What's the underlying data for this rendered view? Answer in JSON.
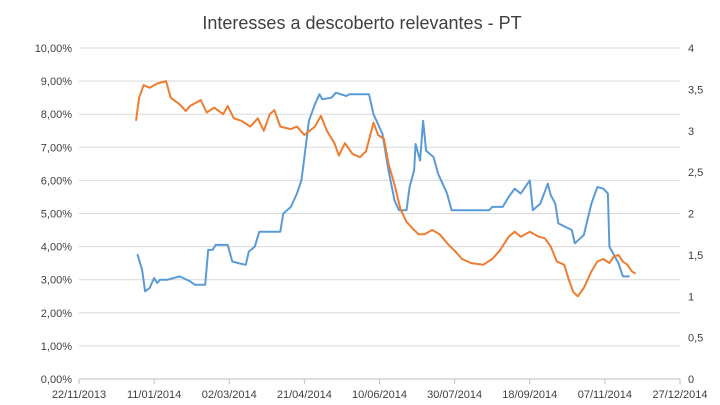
{
  "chart_data": {
    "type": "line",
    "title": "Interesses a descoberto relevantes - PT",
    "xlabel": "",
    "ylabel": "",
    "x_tick_labels": [
      "22/11/2013",
      "11/01/2014",
      "02/03/2014",
      "21/04/2014",
      "10/06/2014",
      "30/07/2014",
      "18/09/2014",
      "07/11/2014",
      "27/12/2014"
    ],
    "y_left_tick_labels": [
      "0,00%",
      "1,00%",
      "2,00%",
      "3,00%",
      "4,00%",
      "5,00%",
      "6,00%",
      "7,00%",
      "8,00%",
      "9,00%",
      "10,00%"
    ],
    "y_right_tick_labels": [
      "0",
      "0,5",
      "1",
      "1,5",
      "2",
      "2,5",
      "3",
      "3,5",
      "4"
    ],
    "xlim": [
      "2013-11-22",
      "2014-12-27"
    ],
    "ylim_left": [
      0,
      10
    ],
    "ylim_right": [
      0,
      4
    ],
    "grid": true,
    "legend": "none",
    "series": [
      {
        "axis": "left",
        "color": "#5B9BD5",
        "points": [
          [
            "2013-12-31",
            3.75
          ],
          [
            "2014-01-03",
            3.3
          ],
          [
            "2014-01-05",
            2.65
          ],
          [
            "2014-01-08",
            2.75
          ],
          [
            "2014-01-11",
            3.05
          ],
          [
            "2014-01-13",
            2.9
          ],
          [
            "2014-01-15",
            3.0
          ],
          [
            "2014-01-20",
            3.0
          ],
          [
            "2014-01-28",
            3.1
          ],
          [
            "2014-02-04",
            2.95
          ],
          [
            "2014-02-07",
            2.85
          ],
          [
            "2014-02-14",
            2.85
          ],
          [
            "2014-02-16",
            3.9
          ],
          [
            "2014-02-19",
            3.9
          ],
          [
            "2014-02-21",
            4.05
          ],
          [
            "2014-03-01",
            4.05
          ],
          [
            "2014-03-04",
            3.55
          ],
          [
            "2014-03-08",
            3.5
          ],
          [
            "2014-03-13",
            3.45
          ],
          [
            "2014-03-15",
            3.85
          ],
          [
            "2014-03-19",
            4.0
          ],
          [
            "2014-03-22",
            4.45
          ],
          [
            "2014-04-05",
            4.45
          ],
          [
            "2014-04-07",
            5.0
          ],
          [
            "2014-04-12",
            5.2
          ],
          [
            "2014-04-16",
            5.6
          ],
          [
            "2014-04-19",
            6.0
          ],
          [
            "2014-04-21",
            6.7
          ],
          [
            "2014-04-24",
            7.8
          ],
          [
            "2014-04-28",
            8.3
          ],
          [
            "2014-05-01",
            8.6
          ],
          [
            "2014-05-03",
            8.45
          ],
          [
            "2014-05-09",
            8.5
          ],
          [
            "2014-05-12",
            8.65
          ],
          [
            "2014-05-19",
            8.55
          ],
          [
            "2014-05-21",
            8.6
          ],
          [
            "2014-06-03",
            8.6
          ],
          [
            "2014-06-06",
            8.0
          ],
          [
            "2014-06-12",
            7.4
          ],
          [
            "2014-06-16",
            6.3
          ],
          [
            "2014-06-20",
            5.4
          ],
          [
            "2014-06-23",
            5.1
          ],
          [
            "2014-06-28",
            5.1
          ],
          [
            "2014-06-30",
            5.8
          ],
          [
            "2014-07-03",
            6.3
          ],
          [
            "2014-07-04",
            7.1
          ],
          [
            "2014-07-07",
            6.6
          ],
          [
            "2014-07-09",
            7.8
          ],
          [
            "2014-07-11",
            6.9
          ],
          [
            "2014-07-16",
            6.7
          ],
          [
            "2014-07-19",
            6.2
          ],
          [
            "2014-07-25",
            5.6
          ],
          [
            "2014-07-28",
            5.1
          ],
          [
            "2014-08-22",
            5.1
          ],
          [
            "2014-08-24",
            5.2
          ],
          [
            "2014-08-31",
            5.2
          ],
          [
            "2014-09-04",
            5.5
          ],
          [
            "2014-09-08",
            5.75
          ],
          [
            "2014-09-12",
            5.6
          ],
          [
            "2014-09-18",
            6.0
          ],
          [
            "2014-09-20",
            5.1
          ],
          [
            "2014-09-25",
            5.3
          ],
          [
            "2014-09-30",
            5.9
          ],
          [
            "2014-10-02",
            5.55
          ],
          [
            "2014-10-05",
            5.3
          ],
          [
            "2014-10-07",
            4.7
          ],
          [
            "2014-10-16",
            4.5
          ],
          [
            "2014-10-18",
            4.1
          ],
          [
            "2014-10-24",
            4.35
          ],
          [
            "2014-10-29",
            5.3
          ],
          [
            "2014-11-02",
            5.8
          ],
          [
            "2014-11-06",
            5.75
          ],
          [
            "2014-11-09",
            5.6
          ],
          [
            "2014-11-10",
            4.0
          ],
          [
            "2014-11-16",
            3.5
          ],
          [
            "2014-11-19",
            3.1
          ],
          [
            "2014-11-23",
            3.1
          ]
        ]
      },
      {
        "axis": "right",
        "color": "#ED7D31",
        "points": [
          [
            "2013-12-30",
            3.13
          ],
          [
            "2014-01-01",
            3.4
          ],
          [
            "2014-01-04",
            3.55
          ],
          [
            "2014-01-08",
            3.52
          ],
          [
            "2014-01-13",
            3.57
          ],
          [
            "2014-01-19",
            3.6
          ],
          [
            "2014-01-22",
            3.4
          ],
          [
            "2014-01-28",
            3.32
          ],
          [
            "2014-02-01",
            3.24
          ],
          [
            "2014-02-04",
            3.3
          ],
          [
            "2014-02-11",
            3.37
          ],
          [
            "2014-02-15",
            3.22
          ],
          [
            "2014-02-20",
            3.28
          ],
          [
            "2014-02-26",
            3.2
          ],
          [
            "2014-03-01",
            3.3
          ],
          [
            "2014-03-05",
            3.15
          ],
          [
            "2014-03-10",
            3.12
          ],
          [
            "2014-03-16",
            3.05
          ],
          [
            "2014-03-21",
            3.15
          ],
          [
            "2014-03-25",
            3.0
          ],
          [
            "2014-03-29",
            3.2
          ],
          [
            "2014-04-01",
            3.25
          ],
          [
            "2014-04-05",
            3.05
          ],
          [
            "2014-04-12",
            3.02
          ],
          [
            "2014-04-16",
            3.05
          ],
          [
            "2014-04-21",
            2.95
          ],
          [
            "2014-04-28",
            3.05
          ],
          [
            "2014-05-02",
            3.18
          ],
          [
            "2014-05-06",
            3.0
          ],
          [
            "2014-05-11",
            2.85
          ],
          [
            "2014-05-14",
            2.7
          ],
          [
            "2014-05-18",
            2.85
          ],
          [
            "2014-05-23",
            2.72
          ],
          [
            "2014-05-28",
            2.68
          ],
          [
            "2014-06-01",
            2.75
          ],
          [
            "2014-06-06",
            3.1
          ],
          [
            "2014-06-09",
            2.95
          ],
          [
            "2014-06-13",
            2.9
          ],
          [
            "2014-06-16",
            2.6
          ],
          [
            "2014-06-20",
            2.35
          ],
          [
            "2014-06-24",
            2.05
          ],
          [
            "2014-06-28",
            1.9
          ],
          [
            "2014-07-03",
            1.8
          ],
          [
            "2014-07-06",
            1.75
          ],
          [
            "2014-07-10",
            1.75
          ],
          [
            "2014-07-15",
            1.8
          ],
          [
            "2014-07-20",
            1.75
          ],
          [
            "2014-07-26",
            1.62
          ],
          [
            "2014-07-30",
            1.55
          ],
          [
            "2014-08-04",
            1.45
          ],
          [
            "2014-08-10",
            1.4
          ],
          [
            "2014-08-18",
            1.38
          ],
          [
            "2014-08-24",
            1.45
          ],
          [
            "2014-08-29",
            1.55
          ],
          [
            "2014-09-04",
            1.72
          ],
          [
            "2014-09-08",
            1.78
          ],
          [
            "2014-09-12",
            1.72
          ],
          [
            "2014-09-18",
            1.78
          ],
          [
            "2014-09-24",
            1.72
          ],
          [
            "2014-09-28",
            1.7
          ],
          [
            "2014-10-02",
            1.6
          ],
          [
            "2014-10-06",
            1.42
          ],
          [
            "2014-10-11",
            1.38
          ],
          [
            "2014-10-14",
            1.2
          ],
          [
            "2014-10-17",
            1.05
          ],
          [
            "2014-10-20",
            1.0
          ],
          [
            "2014-10-24",
            1.1
          ],
          [
            "2014-10-29",
            1.3
          ],
          [
            "2014-11-02",
            1.42
          ],
          [
            "2014-11-06",
            1.45
          ],
          [
            "2014-11-10",
            1.4
          ],
          [
            "2014-11-13",
            1.48
          ],
          [
            "2014-11-16",
            1.5
          ],
          [
            "2014-11-19",
            1.42
          ],
          [
            "2014-11-22",
            1.38
          ],
          [
            "2014-11-25",
            1.3
          ],
          [
            "2014-11-27",
            1.28
          ]
        ]
      }
    ]
  }
}
